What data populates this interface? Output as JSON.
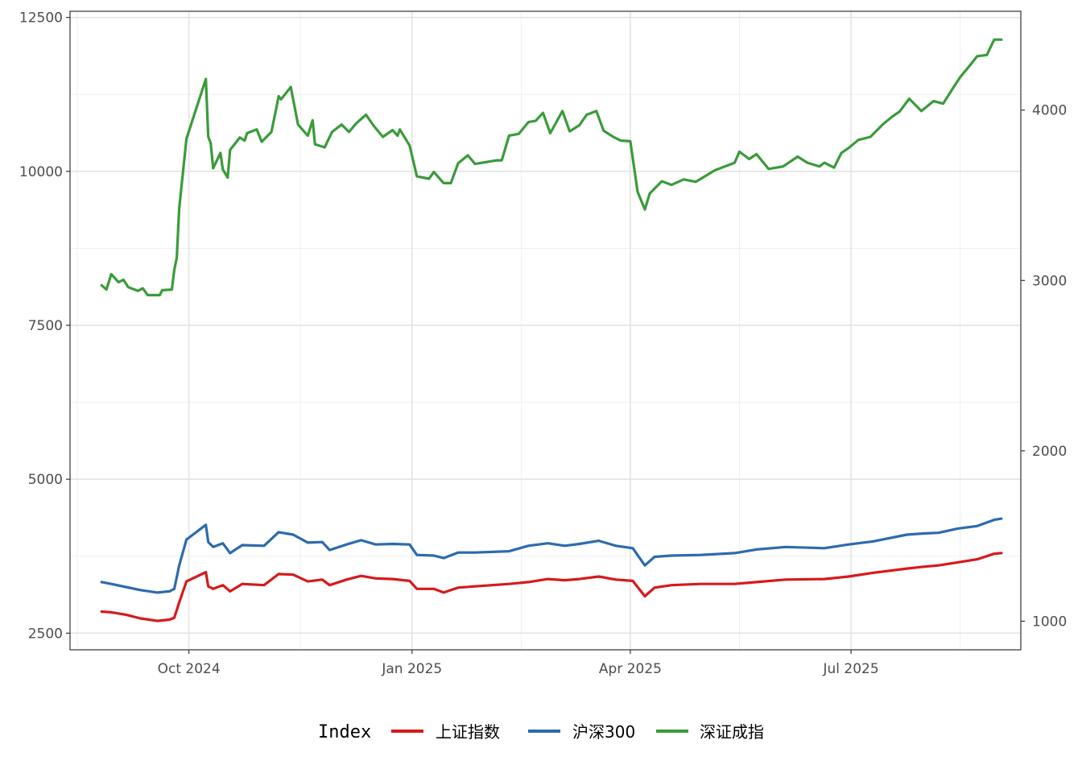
{
  "chart_data": {
    "type": "line",
    "title": "",
    "xlabel": "",
    "ylabel": "",
    "x_ticks": [
      {
        "date": "2024-10-01",
        "label": "Oct 2024"
      },
      {
        "date": "2025-01-01",
        "label": "Jan 2025"
      },
      {
        "date": "2025-04-01",
        "label": "Apr 2025"
      },
      {
        "date": "2025-07-01",
        "label": "Jul 2025"
      }
    ],
    "x_range": [
      "2024-08-13",
      "2025-09-09"
    ],
    "y_left": {
      "range": [
        2230,
        12600
      ],
      "ticks": [
        2500,
        5000,
        7500,
        10000,
        12500
      ]
    },
    "y_right": {
      "range": [
        832,
        4580
      ],
      "ticks": [
        1000,
        2000,
        3000,
        4000
      ]
    },
    "grid": true,
    "legend": {
      "title": "Index",
      "placement": "bottom",
      "entries": [
        {
          "name": "上证指数",
          "color": "#d7191c"
        },
        {
          "name": "沪深300",
          "color": "#2c6bad"
        },
        {
          "name": "深证成指",
          "color": "#3a9b3a"
        }
      ]
    },
    "series": [
      {
        "name": "上证指数",
        "color": "#d7191c",
        "points": [
          [
            "2024-08-26",
            2850
          ],
          [
            "2024-08-30",
            2840
          ],
          [
            "2024-09-05",
            2800
          ],
          [
            "2024-09-11",
            2740
          ],
          [
            "2024-09-18",
            2700
          ],
          [
            "2024-09-23",
            2720
          ],
          [
            "2024-09-25",
            2750
          ],
          [
            "2024-09-27",
            3000
          ],
          [
            "2024-09-30",
            3340
          ],
          [
            "2024-10-08",
            3490
          ],
          [
            "2024-10-09",
            3260
          ],
          [
            "2024-10-11",
            3220
          ],
          [
            "2024-10-15",
            3280
          ],
          [
            "2024-10-18",
            3180
          ],
          [
            "2024-10-23",
            3300
          ],
          [
            "2024-11-01",
            3280
          ],
          [
            "2024-11-07",
            3460
          ],
          [
            "2024-11-13",
            3450
          ],
          [
            "2024-11-19",
            3340
          ],
          [
            "2024-11-25",
            3370
          ],
          [
            "2024-11-28",
            3280
          ],
          [
            "2024-12-05",
            3370
          ],
          [
            "2024-12-11",
            3430
          ],
          [
            "2024-12-17",
            3390
          ],
          [
            "2024-12-24",
            3380
          ],
          [
            "2024-12-31",
            3350
          ],
          [
            "2025-01-03",
            3220
          ],
          [
            "2025-01-10",
            3220
          ],
          [
            "2025-01-14",
            3160
          ],
          [
            "2025-01-20",
            3240
          ],
          [
            "2025-01-27",
            3260
          ],
          [
            "2025-02-10",
            3300
          ],
          [
            "2025-02-18",
            3330
          ],
          [
            "2025-02-26",
            3380
          ],
          [
            "2025-03-05",
            3360
          ],
          [
            "2025-03-11",
            3380
          ],
          [
            "2025-03-19",
            3420
          ],
          [
            "2025-03-26",
            3370
          ],
          [
            "2025-04-02",
            3350
          ],
          [
            "2025-04-07",
            3100
          ],
          [
            "2025-04-11",
            3240
          ],
          [
            "2025-04-18",
            3280
          ],
          [
            "2025-04-30",
            3300
          ],
          [
            "2025-05-14",
            3300
          ],
          [
            "2025-05-23",
            3330
          ],
          [
            "2025-06-04",
            3370
          ],
          [
            "2025-06-20",
            3380
          ],
          [
            "2025-06-30",
            3420
          ],
          [
            "2025-07-10",
            3480
          ],
          [
            "2025-07-24",
            3550
          ],
          [
            "2025-07-31",
            3580
          ],
          [
            "2025-08-06",
            3600
          ],
          [
            "2025-08-14",
            3650
          ],
          [
            "2025-08-22",
            3700
          ],
          [
            "2025-08-29",
            3790
          ],
          [
            "2025-09-01",
            3800
          ]
        ]
      },
      {
        "name": "沪深300",
        "color": "#2c6bad",
        "points": [
          [
            "2024-08-26",
            3330
          ],
          [
            "2024-08-30",
            3300
          ],
          [
            "2024-09-05",
            3250
          ],
          [
            "2024-09-11",
            3200
          ],
          [
            "2024-09-18",
            3160
          ],
          [
            "2024-09-23",
            3180
          ],
          [
            "2024-09-25",
            3220
          ],
          [
            "2024-09-27",
            3600
          ],
          [
            "2024-09-30",
            4020
          ],
          [
            "2024-10-08",
            4260
          ],
          [
            "2024-10-09",
            3980
          ],
          [
            "2024-10-11",
            3900
          ],
          [
            "2024-10-15",
            3960
          ],
          [
            "2024-10-18",
            3800
          ],
          [
            "2024-10-23",
            3930
          ],
          [
            "2024-11-01",
            3920
          ],
          [
            "2024-11-07",
            4140
          ],
          [
            "2024-11-13",
            4100
          ],
          [
            "2024-11-19",
            3970
          ],
          [
            "2024-11-25",
            3980
          ],
          [
            "2024-11-28",
            3850
          ],
          [
            "2024-12-05",
            3940
          ],
          [
            "2024-12-11",
            4010
          ],
          [
            "2024-12-17",
            3940
          ],
          [
            "2024-12-24",
            3950
          ],
          [
            "2024-12-31",
            3940
          ],
          [
            "2025-01-03",
            3770
          ],
          [
            "2025-01-10",
            3760
          ],
          [
            "2025-01-14",
            3720
          ],
          [
            "2025-01-20",
            3810
          ],
          [
            "2025-01-27",
            3810
          ],
          [
            "2025-02-10",
            3830
          ],
          [
            "2025-02-18",
            3920
          ],
          [
            "2025-02-26",
            3960
          ],
          [
            "2025-03-05",
            3920
          ],
          [
            "2025-03-11",
            3950
          ],
          [
            "2025-03-19",
            4000
          ],
          [
            "2025-03-26",
            3920
          ],
          [
            "2025-04-02",
            3880
          ],
          [
            "2025-04-07",
            3600
          ],
          [
            "2025-04-11",
            3740
          ],
          [
            "2025-04-18",
            3760
          ],
          [
            "2025-04-30",
            3770
          ],
          [
            "2025-05-14",
            3800
          ],
          [
            "2025-05-23",
            3860
          ],
          [
            "2025-06-04",
            3900
          ],
          [
            "2025-06-20",
            3880
          ],
          [
            "2025-06-30",
            3940
          ],
          [
            "2025-07-10",
            3990
          ],
          [
            "2025-07-24",
            4100
          ],
          [
            "2025-07-31",
            4120
          ],
          [
            "2025-08-06",
            4130
          ],
          [
            "2025-08-14",
            4200
          ],
          [
            "2025-08-22",
            4240
          ],
          [
            "2025-08-29",
            4340
          ],
          [
            "2025-09-01",
            4360
          ]
        ]
      },
      {
        "name": "深证成指",
        "color": "#3a9b3a",
        "points": [
          [
            "2024-08-26",
            8150
          ],
          [
            "2024-08-28",
            8080
          ],
          [
            "2024-08-30",
            8330
          ],
          [
            "2024-09-02",
            8200
          ],
          [
            "2024-09-04",
            8240
          ],
          [
            "2024-09-06",
            8120
          ],
          [
            "2024-09-10",
            8060
          ],
          [
            "2024-09-12",
            8100
          ],
          [
            "2024-09-14",
            7990
          ],
          [
            "2024-09-19",
            7990
          ],
          [
            "2024-09-20",
            8070
          ],
          [
            "2024-09-24",
            8080
          ],
          [
            "2024-09-25",
            8400
          ],
          [
            "2024-09-26",
            8600
          ],
          [
            "2024-09-27",
            9400
          ],
          [
            "2024-09-30",
            10530
          ],
          [
            "2024-10-08",
            11500
          ],
          [
            "2024-10-09",
            10560
          ],
          [
            "2024-10-10",
            10460
          ],
          [
            "2024-10-11",
            10050
          ],
          [
            "2024-10-14",
            10300
          ],
          [
            "2024-10-15",
            10030
          ],
          [
            "2024-10-17",
            9900
          ],
          [
            "2024-10-18",
            10350
          ],
          [
            "2024-10-22",
            10550
          ],
          [
            "2024-10-24",
            10500
          ],
          [
            "2024-10-25",
            10620
          ],
          [
            "2024-10-29",
            10680
          ],
          [
            "2024-10-31",
            10480
          ],
          [
            "2024-11-04",
            10640
          ],
          [
            "2024-11-06",
            11020
          ],
          [
            "2024-11-07",
            11220
          ],
          [
            "2024-11-08",
            11170
          ],
          [
            "2024-11-12",
            11370
          ],
          [
            "2024-11-15",
            10760
          ],
          [
            "2024-11-19",
            10580
          ],
          [
            "2024-11-21",
            10830
          ],
          [
            "2024-11-22",
            10440
          ],
          [
            "2024-11-26",
            10390
          ],
          [
            "2024-11-29",
            10640
          ],
          [
            "2024-12-03",
            10760
          ],
          [
            "2024-12-06",
            10640
          ],
          [
            "2024-12-09",
            10780
          ],
          [
            "2024-12-13",
            10920
          ],
          [
            "2024-12-16",
            10750
          ],
          [
            "2024-12-20",
            10560
          ],
          [
            "2024-12-24",
            10670
          ],
          [
            "2024-12-26",
            10580
          ],
          [
            "2024-12-27",
            10680
          ],
          [
            "2024-12-31",
            10420
          ],
          [
            "2025-01-03",
            9920
          ],
          [
            "2025-01-08",
            9880
          ],
          [
            "2025-01-10",
            9990
          ],
          [
            "2025-01-14",
            9810
          ],
          [
            "2025-01-17",
            9810
          ],
          [
            "2025-01-20",
            10130
          ],
          [
            "2025-01-24",
            10260
          ],
          [
            "2025-01-27",
            10120
          ],
          [
            "2025-02-05",
            10180
          ],
          [
            "2025-02-07",
            10180
          ],
          [
            "2025-02-10",
            10580
          ],
          [
            "2025-02-14",
            10610
          ],
          [
            "2025-02-18",
            10800
          ],
          [
            "2025-02-21",
            10820
          ],
          [
            "2025-02-24",
            10950
          ],
          [
            "2025-02-27",
            10620
          ],
          [
            "2025-03-04",
            10980
          ],
          [
            "2025-03-07",
            10650
          ],
          [
            "2025-03-11",
            10750
          ],
          [
            "2025-03-14",
            10920
          ],
          [
            "2025-03-18",
            10980
          ],
          [
            "2025-03-21",
            10660
          ],
          [
            "2025-03-25",
            10560
          ],
          [
            "2025-03-28",
            10500
          ],
          [
            "2025-04-01",
            10490
          ],
          [
            "2025-04-04",
            9670
          ],
          [
            "2025-04-07",
            9380
          ],
          [
            "2025-04-09",
            9640
          ],
          [
            "2025-04-14",
            9840
          ],
          [
            "2025-04-18",
            9780
          ],
          [
            "2025-04-23",
            9870
          ],
          [
            "2025-04-28",
            9830
          ],
          [
            "2025-05-06",
            10020
          ],
          [
            "2025-05-14",
            10140
          ],
          [
            "2025-05-16",
            10320
          ],
          [
            "2025-05-20",
            10200
          ],
          [
            "2025-05-23",
            10280
          ],
          [
            "2025-05-28",
            10040
          ],
          [
            "2025-06-03",
            10080
          ],
          [
            "2025-06-09",
            10240
          ],
          [
            "2025-06-13",
            10140
          ],
          [
            "2025-06-18",
            10080
          ],
          [
            "2025-06-20",
            10140
          ],
          [
            "2025-06-24",
            10060
          ],
          [
            "2025-06-27",
            10300
          ],
          [
            "2025-06-30",
            10380
          ],
          [
            "2025-07-04",
            10510
          ],
          [
            "2025-07-09",
            10560
          ],
          [
            "2025-07-14",
            10760
          ],
          [
            "2025-07-18",
            10890
          ],
          [
            "2025-07-21",
            10970
          ],
          [
            "2025-07-25",
            11180
          ],
          [
            "2025-07-30",
            10980
          ],
          [
            "2025-08-04",
            11140
          ],
          [
            "2025-08-08",
            11100
          ],
          [
            "2025-08-12",
            11350
          ],
          [
            "2025-08-15",
            11530
          ],
          [
            "2025-08-19",
            11720
          ],
          [
            "2025-08-22",
            11870
          ],
          [
            "2025-08-26",
            11890
          ],
          [
            "2025-08-29",
            12140
          ],
          [
            "2025-09-01",
            12140
          ]
        ]
      }
    ]
  }
}
